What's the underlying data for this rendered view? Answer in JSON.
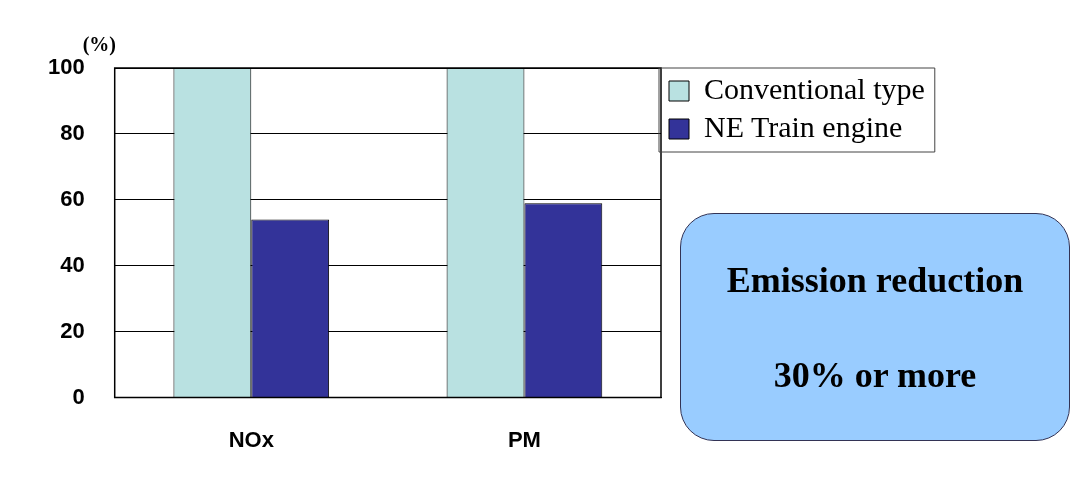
{
  "chart_data": {
    "type": "bar",
    "ylabel": "(%)",
    "categories": [
      "NOx",
      "PM"
    ],
    "series": [
      {
        "name": "Conventional type",
        "color": "#b9e1e1",
        "values": [
          100,
          100
        ]
      },
      {
        "name": "NE Train engine",
        "color": "#333399",
        "values": [
          54,
          59
        ]
      }
    ],
    "ylim": [
      0,
      100
    ],
    "yticks": [
      0,
      20,
      40,
      60,
      80,
      100
    ],
    "grid": "y",
    "legend": "top right",
    "annotations": [
      "Emission reduction",
      "30% or more"
    ]
  }
}
